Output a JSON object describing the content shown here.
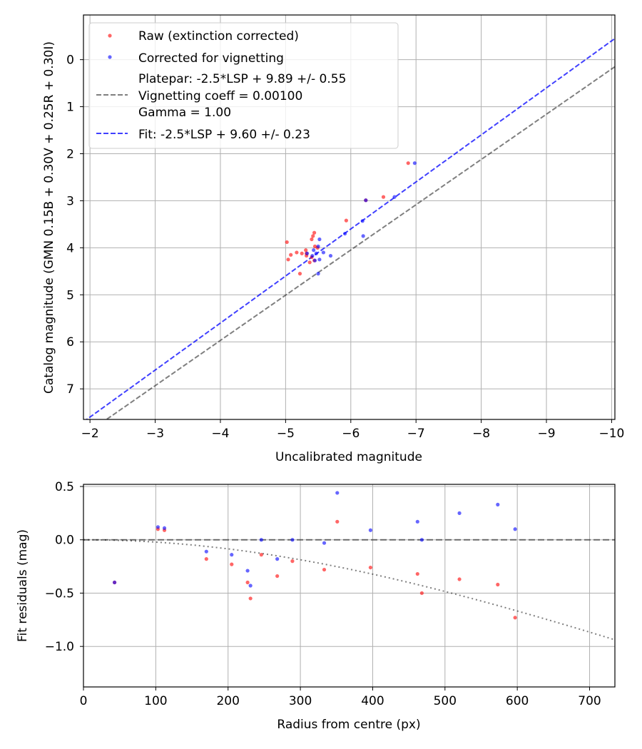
{
  "chart_data": [
    {
      "type": "scatter",
      "xlabel": "Uncalibrated magnitude",
      "ylabel": "Catalog magnitude (GMN 0.15B + 0.30V + 0.25R + 0.30I)",
      "xlim": [
        -1.9,
        -10.05
      ],
      "ylim": [
        7.65,
        -0.95
      ],
      "x_ticks": [
        -2,
        -3,
        -4,
        -5,
        -6,
        -7,
        -8,
        -9,
        -10
      ],
      "x_tick_labels": [
        "−2",
        "−3",
        "−4",
        "−5",
        "−6",
        "−7",
        "−8",
        "−9",
        "−10"
      ],
      "y_ticks": [
        0,
        1,
        2,
        3,
        4,
        5,
        6,
        7
      ],
      "y_tick_labels": [
        "0",
        "1",
        "2",
        "3",
        "4",
        "5",
        "6",
        "7"
      ],
      "grid": true,
      "legend_position": "top-left",
      "legend": [
        {
          "label": "Raw (extinction corrected)",
          "kind": "point",
          "color": "#ff0000"
        },
        {
          "label": "Corrected for vignetting",
          "kind": "point",
          "color": "#0000ff"
        },
        {
          "label": "Platepar: -2.5*LSP + 9.89 +/- 0.55",
          "kind": "text"
        },
        {
          "label": "Vignetting coeff = 0.00100",
          "kind": "dashed",
          "color": "#000000"
        },
        {
          "label": "Gamma = 1.00",
          "kind": "text"
        },
        {
          "label": "Fit: -2.5*LSP + 9.60 +/- 0.23",
          "kind": "dashed",
          "color": "#0000ff"
        }
      ],
      "lines": [
        {
          "name": "Platepar",
          "x0": -1.9,
          "y0": 7.99,
          "x1": -10.05,
          "y1": 0.15,
          "color": "#000000",
          "opacity": 0.5
        },
        {
          "name": "Fit",
          "x0": -1.9,
          "y0": 7.7,
          "x1": -10.05,
          "y1": -0.45,
          "color": "#0000ff",
          "opacity": 0.75
        }
      ],
      "series": [
        {
          "name": "Raw (extinction corrected)",
          "color": "#ff0000",
          "points": [
            [
              -6.88,
              2.2
            ],
            [
              -6.5,
              2.92
            ],
            [
              -6.23,
              2.99
            ],
            [
              -5.93,
              3.42
            ],
            [
              -5.44,
              3.68
            ],
            [
              -5.42,
              3.75
            ],
            [
              -5.4,
              3.82
            ],
            [
              -5.02,
              3.88
            ],
            [
              -5.45,
              3.97
            ],
            [
              -5.49,
              4.0
            ],
            [
              -5.31,
              4.05
            ],
            [
              -5.17,
              4.1
            ],
            [
              -5.25,
              4.12
            ],
            [
              -5.32,
              4.12
            ],
            [
              -5.08,
              4.15
            ],
            [
              -5.32,
              4.17
            ],
            [
              -5.4,
              4.2
            ],
            [
              -5.04,
              4.25
            ],
            [
              -5.44,
              4.27
            ],
            [
              -5.37,
              4.31
            ],
            [
              -5.22,
              4.55
            ]
          ]
        },
        {
          "name": "Corrected for vignetting",
          "color": "#0000ff",
          "points": [
            [
              -6.98,
              2.2
            ],
            [
              -6.67,
              2.92
            ],
            [
              -6.23,
              2.99
            ],
            [
              -6.18,
              3.43
            ],
            [
              -6.19,
              3.75
            ],
            [
              -5.91,
              3.7
            ],
            [
              -5.52,
              3.82
            ],
            [
              -5.5,
              3.97
            ],
            [
              -5.43,
              4.05
            ],
            [
              -5.58,
              4.1
            ],
            [
              -5.47,
              4.12
            ],
            [
              -5.41,
              4.17
            ],
            [
              -5.69,
              4.17
            ],
            [
              -5.33,
              4.12
            ],
            [
              -5.45,
              4.27
            ],
            [
              -5.52,
              4.25
            ],
            [
              -5.5,
              4.55
            ]
          ]
        }
      ]
    },
    {
      "type": "scatter",
      "xlabel": "Radius from centre (px)",
      "ylabel": "Fit residuals (mag)",
      "xlim": [
        0,
        735
      ],
      "ylim": [
        -1.38,
        0.52
      ],
      "x_ticks": [
        0,
        100,
        200,
        300,
        400,
        500,
        600,
        700
      ],
      "x_tick_labels": [
        "0",
        "100",
        "200",
        "300",
        "400",
        "500",
        "600",
        "700"
      ],
      "y_ticks": [
        0.5,
        0.0,
        -0.5,
        -1.0
      ],
      "y_tick_labels": [
        "0.5",
        "0.0",
        "−0.5",
        "−1.0"
      ],
      "grid": true,
      "zero_line": 0.0,
      "vignetting_curve": {
        "coeff": 0.001,
        "gamma": 1.0,
        "style": "dotted"
      },
      "series": [
        {
          "name": "Raw (extinction corrected)",
          "color": "#ff0000",
          "points": [
            [
              43,
              -0.4
            ],
            [
              103,
              0.1
            ],
            [
              112,
              0.09
            ],
            [
              170,
              -0.18
            ],
            [
              205,
              -0.23
            ],
            [
              227,
              -0.4
            ],
            [
              231,
              -0.55
            ],
            [
              246,
              -0.14
            ],
            [
              268,
              -0.34
            ],
            [
              289,
              -0.2
            ],
            [
              333,
              -0.28
            ],
            [
              351,
              0.17
            ],
            [
              397,
              -0.26
            ],
            [
              462,
              -0.32
            ],
            [
              468,
              -0.5
            ],
            [
              520,
              -0.37
            ],
            [
              573,
              -0.42
            ],
            [
              597,
              -0.73
            ]
          ]
        },
        {
          "name": "Corrected for vignetting",
          "color": "#0000ff",
          "points": [
            [
              43,
              -0.4
            ],
            [
              103,
              0.12
            ],
            [
              112,
              0.11
            ],
            [
              170,
              -0.11
            ],
            [
              205,
              -0.14
            ],
            [
              227,
              -0.29
            ],
            [
              231,
              -0.43
            ],
            [
              246,
              0.0
            ],
            [
              268,
              -0.18
            ],
            [
              289,
              0.0
            ],
            [
              333,
              -0.03
            ],
            [
              351,
              0.44
            ],
            [
              397,
              0.09
            ],
            [
              462,
              0.17
            ],
            [
              468,
              0.0
            ],
            [
              520,
              0.25
            ],
            [
              573,
              0.33
            ],
            [
              597,
              0.1
            ]
          ]
        }
      ]
    }
  ]
}
